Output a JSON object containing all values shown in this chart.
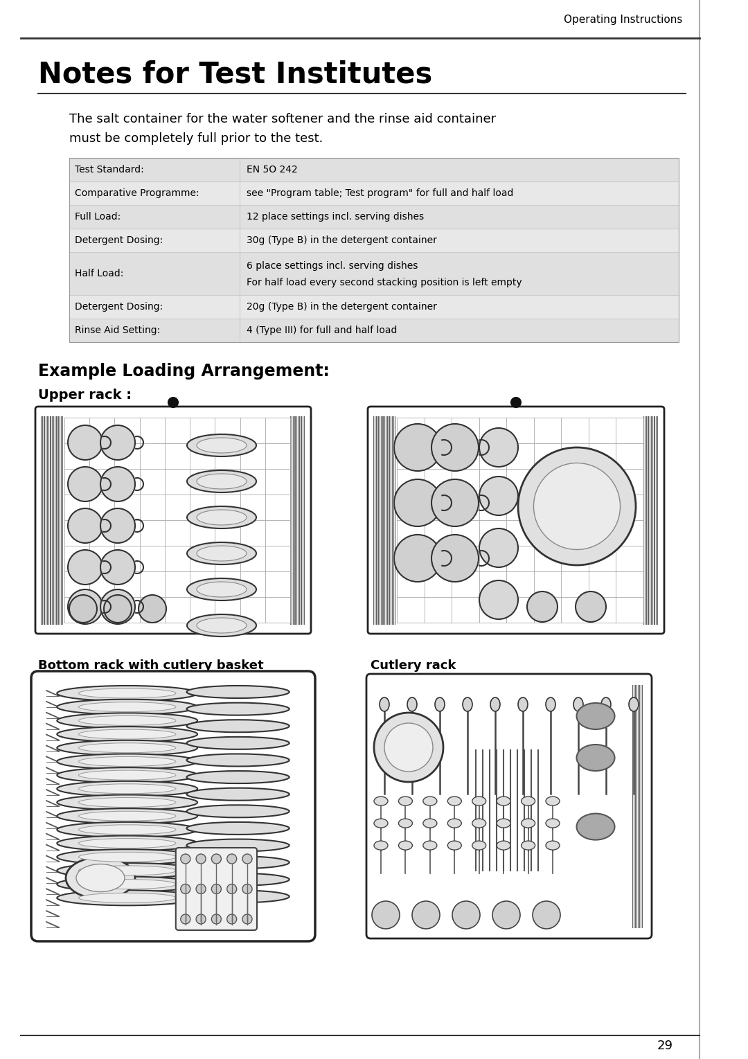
{
  "page_bg": "#ffffff",
  "header_text": "Operating Instructions",
  "title": "Notes for Test Institutes",
  "intro_line1": "The salt container for the water softener and the rinse aid container",
  "intro_line2": "must be completely full prior to the test.",
  "table_rows": [
    [
      "Test Standard:",
      "EN 5O 242"
    ],
    [
      "Comparative Programme:",
      "see \"Program table; Test program\" for full and half load"
    ],
    [
      "Full Load:",
      "12 place settings incl. serving dishes"
    ],
    [
      "Detergent Dosing:",
      "30g (Type B) in the detergent container"
    ],
    [
      "Half Load:",
      "6 place settings incl. serving dishes\nFor half load every second stacking position is left empty"
    ],
    [
      "Detergent Dosing:",
      "20g (Type B) in the detergent container"
    ],
    [
      "Rinse Aid Setting:",
      "4 (Type III) for full and half load"
    ]
  ],
  "section_title": "Example Loading Arrangement:",
  "upper_rack_label": "Upper rack :",
  "bottom_rack_label": "Bottom rack with cutlery basket",
  "cutlery_rack_label": "Cutlery rack",
  "page_number": "29",
  "text_color": "#000000"
}
